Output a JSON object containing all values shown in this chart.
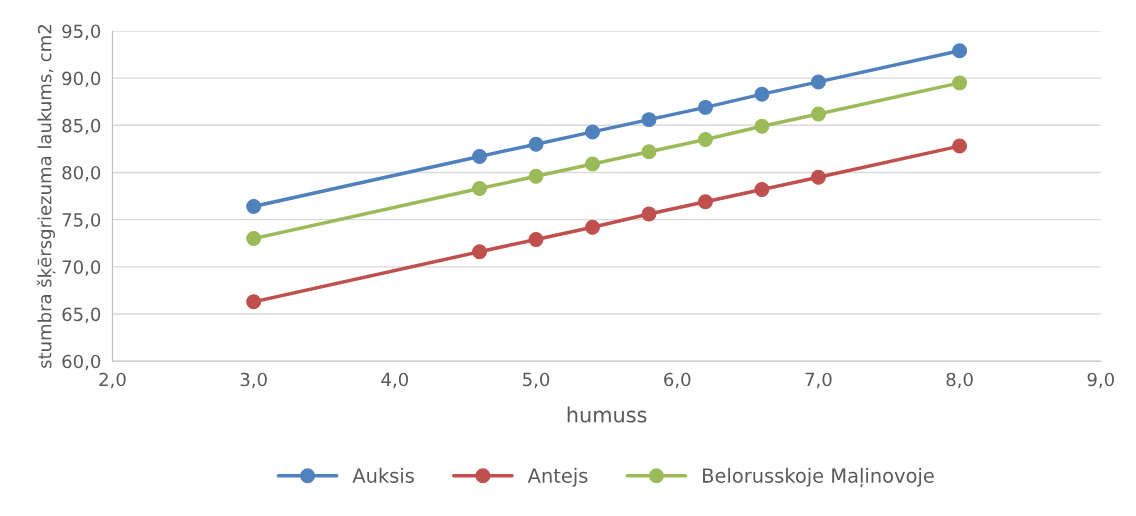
{
  "chart_data": {
    "type": "line",
    "xlabel": "humuss",
    "ylabel": "stumbra šķērsgriezuma laukums, cm2",
    "x": [
      3.0,
      4.6,
      5.0,
      5.4,
      5.8,
      6.2,
      6.6,
      7.0,
      8.0
    ],
    "series": [
      {
        "name": "Auksis",
        "color": "#4f81bd",
        "values": [
          76.4,
          81.7,
          83.0,
          84.3,
          85.6,
          86.9,
          88.3,
          89.6,
          92.9
        ]
      },
      {
        "name": "Antejs",
        "color": "#c0504d",
        "values": [
          66.3,
          71.6,
          72.9,
          74.2,
          75.6,
          76.9,
          78.2,
          79.5,
          82.8
        ]
      },
      {
        "name": "Belorusskoje Maļinovoje",
        "color": "#9bbb59",
        "values": [
          73.0,
          78.3,
          79.6,
          80.9,
          82.2,
          83.5,
          84.9,
          86.2,
          89.5
        ]
      }
    ],
    "xlim": [
      2,
      9
    ],
    "xticks": [
      {
        "value": 2,
        "label": "2,0"
      },
      {
        "value": 3,
        "label": "3,0"
      },
      {
        "value": 4,
        "label": "4,0"
      },
      {
        "value": 5,
        "label": "5,0"
      },
      {
        "value": 6,
        "label": "6,0"
      },
      {
        "value": 7,
        "label": "7,0"
      },
      {
        "value": 8,
        "label": "8,0"
      },
      {
        "value": 9,
        "label": "9,0"
      }
    ],
    "ylim": [
      60,
      95
    ],
    "yticks": [
      {
        "value": 60,
        "label": "60,0"
      },
      {
        "value": 65,
        "label": "65,0"
      },
      {
        "value": 70,
        "label": "70,0"
      },
      {
        "value": 75,
        "label": "75,0"
      },
      {
        "value": 80,
        "label": "80,0"
      },
      {
        "value": 85,
        "label": "85,0"
      },
      {
        "value": 90,
        "label": "90,0"
      },
      {
        "value": 95,
        "label": "95,0"
      }
    ],
    "grid": "y",
    "legend": "bottom",
    "marker": "circle",
    "line_style": "solid"
  }
}
